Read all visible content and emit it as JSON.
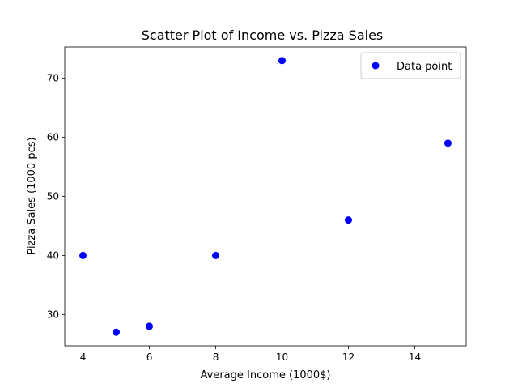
{
  "chart_data": {
    "type": "scatter",
    "title": "Scatter Plot of Income vs. Pizza Sales",
    "xlabel": "Average Income (1000$)",
    "ylabel": "Pizza Sales (1000 pcs)",
    "xlim": [
      3.45,
      15.55
    ],
    "ylim": [
      24.7,
      75.3
    ],
    "xticks": [
      4,
      6,
      8,
      10,
      12,
      14
    ],
    "yticks": [
      30,
      40,
      50,
      60,
      70
    ],
    "grid": false,
    "legend_position": "top-right",
    "series": [
      {
        "name": "Data point",
        "color": "#0000ff",
        "marker": "circle",
        "points": [
          {
            "x": 4,
            "y": 40
          },
          {
            "x": 5,
            "y": 27
          },
          {
            "x": 6,
            "y": 28
          },
          {
            "x": 8,
            "y": 40
          },
          {
            "x": 10,
            "y": 73
          },
          {
            "x": 12,
            "y": 46
          },
          {
            "x": 15,
            "y": 59
          }
        ]
      }
    ]
  }
}
